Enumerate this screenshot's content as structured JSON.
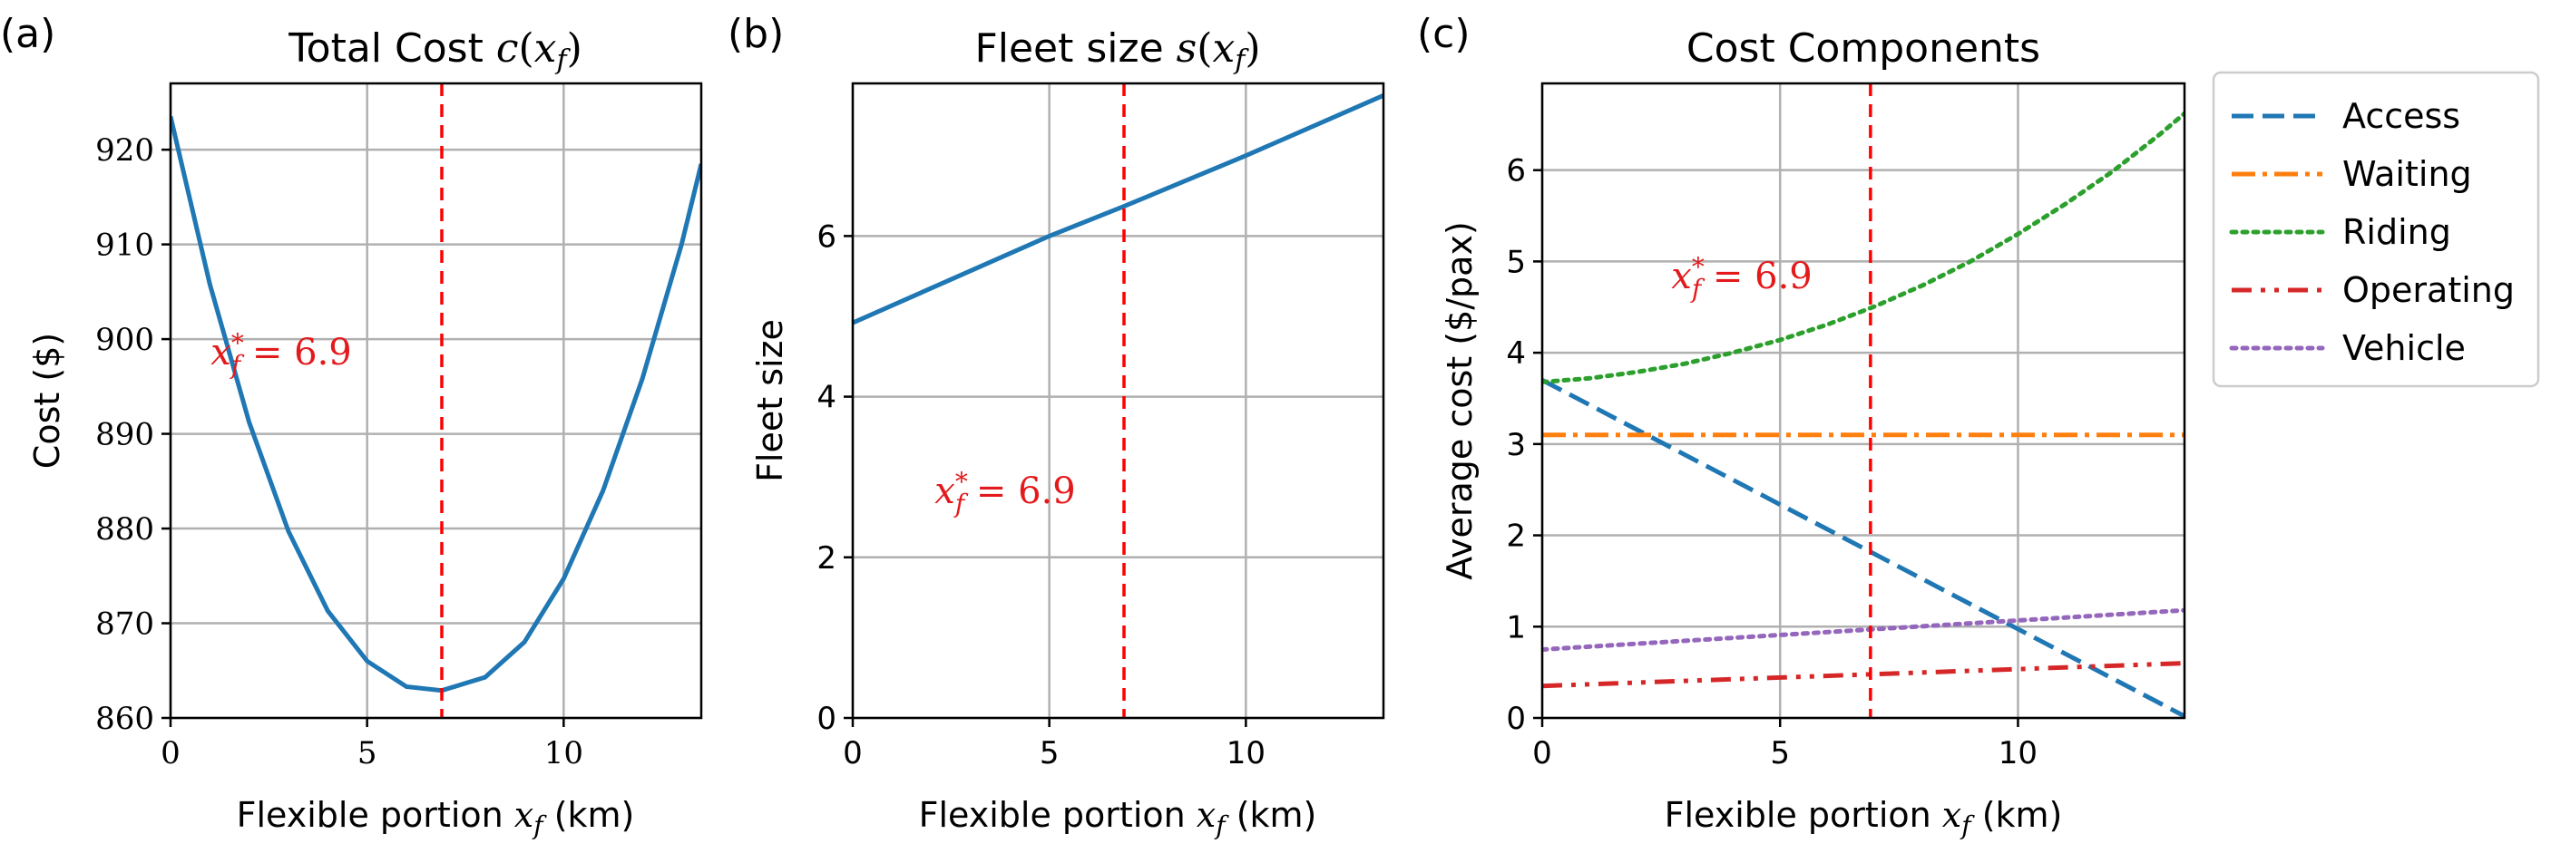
{
  "colors": {
    "blue": "#1f77b4",
    "orange": "#ff7f0e",
    "green": "#2ca02c",
    "red": "#d62728",
    "purple": "#9467bd",
    "marker": "#ff0000"
  },
  "chart_data": [
    {
      "panel_label": "(a)",
      "type": "line",
      "title": "Total Cost c(x_f)",
      "xlabel": "Flexible portion x_f (km)",
      "ylabel": "Cost ($)",
      "xlim": [
        0,
        13.5
      ],
      "ylim": [
        860,
        927
      ],
      "xticks": [
        0,
        5,
        10
      ],
      "yticks": [
        860,
        870,
        880,
        890,
        900,
        910,
        920
      ],
      "grid": true,
      "series": [
        {
          "x": [
            0,
            1,
            2,
            3,
            4,
            5,
            6,
            6.9,
            8,
            9,
            10,
            11,
            12,
            13,
            13.5
          ],
          "y": [
            923.5,
            905.8,
            891.2,
            879.7,
            871.3,
            866.0,
            863.3,
            862.9,
            864.3,
            868.0,
            874.7,
            884.0,
            895.8,
            910.0,
            918.5
          ]
        }
      ],
      "vline": {
        "x": 6.9,
        "label": "x*_f = 6.9"
      }
    },
    {
      "panel_label": "(b)",
      "type": "line",
      "title": "Fleet size s(x_f)",
      "xlabel": "Flexible portion x_f (km)",
      "ylabel": "Fleet size",
      "xlim": [
        0,
        13.5
      ],
      "ylim": [
        0,
        7.9
      ],
      "xticks": [
        0,
        5,
        10
      ],
      "yticks": [
        0,
        2,
        4,
        6
      ],
      "grid": true,
      "series": [
        {
          "x": [
            0,
            5,
            6.9,
            10,
            13.5
          ],
          "y": [
            4.92,
            6.0,
            6.37,
            7.0,
            7.75
          ]
        }
      ],
      "vline": {
        "x": 6.9,
        "label": "x*_f = 6.9"
      }
    },
    {
      "panel_label": "(c)",
      "type": "line",
      "title": "Cost Components",
      "xlabel": "Flexible portion x_f (km)",
      "ylabel": "Average cost ($/pax)",
      "xlim": [
        0,
        13.5
      ],
      "ylim": [
        0,
        6.95
      ],
      "xticks": [
        0,
        5,
        10
      ],
      "yticks": [
        0,
        1,
        2,
        3,
        4,
        5,
        6
      ],
      "grid": true,
      "legend": "outside-right",
      "series": [
        {
          "name": "Access",
          "style": "dashed",
          "x": [
            0,
            13.5
          ],
          "y": [
            3.7,
            0.02
          ]
        },
        {
          "name": "Waiting",
          "style": "dashdot",
          "x": [
            0,
            13.5
          ],
          "y": [
            3.1,
            3.1
          ]
        },
        {
          "name": "Riding",
          "style": "dotted",
          "x": [
            0,
            1,
            2,
            3,
            4,
            5,
            6,
            7,
            8,
            9,
            10,
            11,
            12,
            13,
            13.5
          ],
          "y": [
            3.68,
            3.72,
            3.79,
            3.88,
            4.0,
            4.14,
            4.31,
            4.51,
            4.74,
            5.0,
            5.3,
            5.63,
            5.99,
            6.4,
            6.62
          ]
        },
        {
          "name": "Operating",
          "style": "dashdotdot",
          "x": [
            0,
            13.5
          ],
          "y": [
            0.35,
            0.6
          ]
        },
        {
          "name": "Vehicle",
          "style": "dotted",
          "x": [
            0,
            13.5
          ],
          "y": [
            0.75,
            1.18
          ]
        }
      ],
      "vline": {
        "x": 6.9,
        "label": "x*_f = 6.9"
      }
    }
  ]
}
